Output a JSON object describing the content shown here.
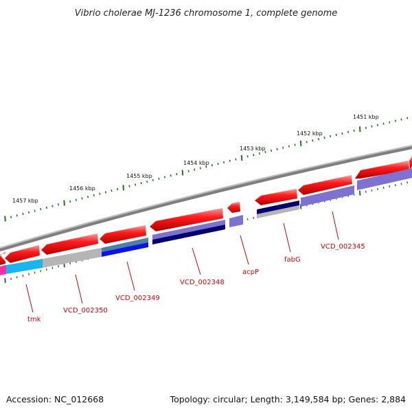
{
  "title": "Vibrio cholerae MJ-1236 chromosome 1, complete genome",
  "accession": "Accession: NC_012668",
  "topology": "Topology: circular; Length: 3,149,584 bp; Genes: 2,884",
  "kbp_labels": [
    "1451 kbp",
    "1452 kbp",
    "1453 kbp",
    "1454 kbp",
    "1455 kbp",
    "1456 kbp",
    "1457 kbp"
  ],
  "gene_labels": [
    "VCD_002345",
    "fabG",
    "acpP",
    "VCD_002348",
    "VCD_002349",
    "VCD_002350",
    "tmk"
  ],
  "colors": {
    "backbone": "#8a8a8a",
    "gene_arrow": "#e60000",
    "tick_green": "#1a7a1a",
    "label_red": "#d40000",
    "cds_navy": "#00006e",
    "cds_purple": "#7d72cf",
    "cds_blue": "#0a14e6",
    "cds_steel": "#4e7fa6",
    "cds_gray": "#b5b5b5",
    "cds_cyan": "#18b6ee",
    "cds_magenta": "#ff2ea0"
  }
}
